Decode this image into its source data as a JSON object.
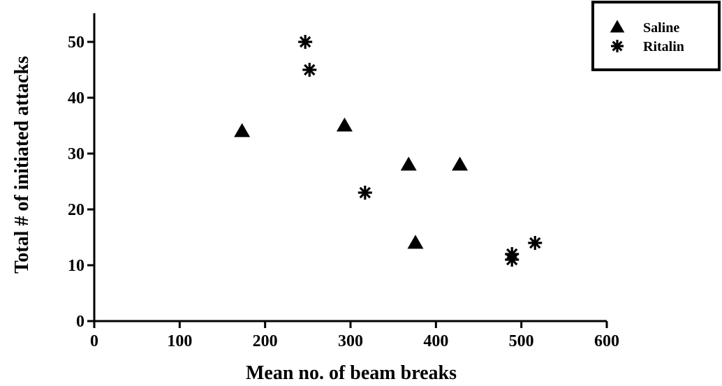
{
  "chart_data": {
    "type": "scatter",
    "xlabel": "Mean no. of beam breaks",
    "ylabel": "Total # of initiated attacks",
    "xlim": [
      0,
      600
    ],
    "ylim": [
      0,
      55
    ],
    "xticks": [
      0,
      100,
      200,
      300,
      400,
      500,
      600
    ],
    "yticks": [
      0,
      10,
      20,
      30,
      40,
      50
    ],
    "xtick_labels": [
      "0",
      "100",
      "200",
      "300",
      "400",
      "500",
      "600"
    ],
    "ytick_labels": [
      "0",
      "10",
      "20",
      "30",
      "40",
      "50"
    ],
    "legend_position": "top-right",
    "grid": false,
    "series": [
      {
        "name": "Saline",
        "marker": "triangle",
        "color": "#000000",
        "points": [
          {
            "x": 173,
            "y": 34
          },
          {
            "x": 293,
            "y": 35
          },
          {
            "x": 368,
            "y": 28
          },
          {
            "x": 376,
            "y": 14
          },
          {
            "x": 428,
            "y": 28
          }
        ]
      },
      {
        "name": "Ritalin",
        "marker": "asterisk",
        "color": "#000000",
        "points": [
          {
            "x": 247,
            "y": 50
          },
          {
            "x": 252,
            "y": 45
          },
          {
            "x": 317,
            "y": 23
          },
          {
            "x": 489,
            "y": 12
          },
          {
            "x": 489,
            "y": 11
          },
          {
            "x": 516,
            "y": 14
          }
        ]
      }
    ]
  }
}
